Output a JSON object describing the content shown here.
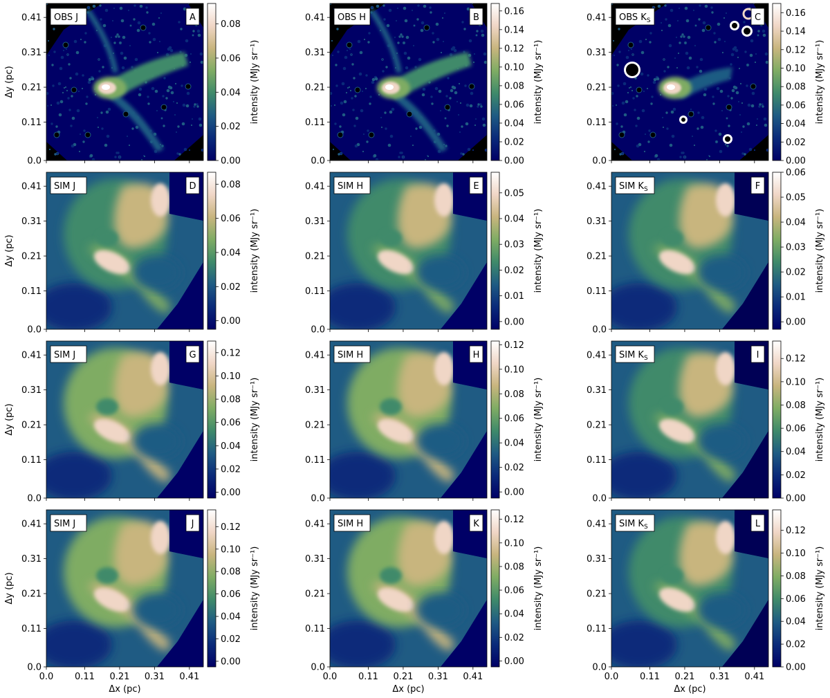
{
  "figure": {
    "colormap": [
      "#000066",
      "#0a2a7a",
      "#1f5b83",
      "#3f8a6a",
      "#7fac64",
      "#c8b57e",
      "#f0d6c6",
      "#ffffff"
    ],
    "obs_background": "#000000"
  },
  "chart_data": [
    {
      "type": "heatmap",
      "panel": "A",
      "label": "OBS J",
      "label_sub": "",
      "xlabel": "",
      "ylabel": "Δy (pc)",
      "colorbar_label": "intensity (MJy sr⁻¹)",
      "colorbar_ticks": [
        "0.00",
        "0.02",
        "0.04",
        "0.06",
        "0.08"
      ],
      "colorbar_range": [
        0,
        0.092
      ],
      "x_ticks": [
        "0.0",
        "0.11",
        "0.21",
        "0.31",
        "0.41"
      ],
      "y_ticks": [
        "0.0",
        "0.11",
        "0.21",
        "0.31",
        "0.41"
      ],
      "xlim": [
        0,
        0.45
      ],
      "ylim": [
        0,
        0.45
      ],
      "kind": "obs"
    },
    {
      "type": "heatmap",
      "panel": "B",
      "label": "OBS H",
      "label_sub": "",
      "xlabel": "",
      "ylabel": "",
      "colorbar_label": "intensity (MJy sr⁻¹)",
      "colorbar_ticks": [
        "0.00",
        "0.02",
        "0.04",
        "0.06",
        "0.08",
        "0.10",
        "0.12",
        "0.14",
        "0.16"
      ],
      "colorbar_range": [
        0,
        0.168
      ],
      "x_ticks": [
        "0.0",
        "0.11",
        "0.21",
        "0.31",
        "0.41"
      ],
      "y_ticks": [
        "0.0",
        "0.11",
        "0.21",
        "0.31",
        "0.41"
      ],
      "xlim": [
        0,
        0.45
      ],
      "ylim": [
        0,
        0.45
      ],
      "kind": "obs"
    },
    {
      "type": "heatmap",
      "panel": "C",
      "label": "OBS K",
      "label_sub": "S",
      "xlabel": "",
      "ylabel": "",
      "colorbar_label": "intensity (MJy sr⁻¹)",
      "colorbar_ticks": [
        "0.00",
        "0.02",
        "0.04",
        "0.06",
        "0.08",
        "0.10",
        "0.12",
        "0.14",
        "0.16"
      ],
      "colorbar_range": [
        0,
        0.17
      ],
      "x_ticks": [
        "0.0",
        "0.11",
        "0.21",
        "0.31",
        "0.41"
      ],
      "y_ticks": [
        "0.0",
        "0.11",
        "0.21",
        "0.31",
        "0.41"
      ],
      "xlim": [
        0,
        0.45
      ],
      "ylim": [
        0,
        0.45
      ],
      "kind": "obsK"
    },
    {
      "type": "heatmap",
      "panel": "D",
      "label": "SIM J",
      "label_sub": "",
      "xlabel": "",
      "ylabel": "Δy (pc)",
      "colorbar_label": "intensity (MJy sr⁻¹)",
      "colorbar_ticks": [
        "0.00",
        "0.02",
        "0.04",
        "0.06",
        "0.08"
      ],
      "colorbar_range": [
        -0.005,
        0.087
      ],
      "x_ticks": [
        "0.0",
        "0.11",
        "0.21",
        "0.31",
        "0.41"
      ],
      "y_ticks": [
        "0.0",
        "0.11",
        "0.21",
        "0.31",
        "0.41"
      ],
      "xlim": [
        0,
        0.45
      ],
      "ylim": [
        0,
        0.45
      ],
      "kind": "sim"
    },
    {
      "type": "heatmap",
      "panel": "E",
      "label": "SIM H",
      "label_sub": "",
      "xlabel": "",
      "ylabel": "",
      "colorbar_label": "intensity (MJy sr⁻¹)",
      "colorbar_ticks": [
        "0.00",
        "0.01",
        "0.02",
        "0.03",
        "0.04",
        "0.05"
      ],
      "colorbar_range": [
        -0.003,
        0.058
      ],
      "x_ticks": [
        "0.0",
        "0.11",
        "0.21",
        "0.31",
        "0.41"
      ],
      "y_ticks": [
        "0.0",
        "0.11",
        "0.21",
        "0.31",
        "0.41"
      ],
      "xlim": [
        0,
        0.45
      ],
      "ylim": [
        0,
        0.45
      ],
      "kind": "sim"
    },
    {
      "type": "heatmap",
      "panel": "F",
      "label": "SIM K",
      "label_sub": "S",
      "xlabel": "",
      "ylabel": "",
      "colorbar_label": "intensity (MJy sr⁻¹)",
      "colorbar_ticks": [
        "0.00",
        "0.01",
        "0.02",
        "0.03",
        "0.04",
        "0.05",
        "0.06"
      ],
      "colorbar_range": [
        -0.003,
        0.06
      ],
      "x_ticks": [
        "0.0",
        "0.11",
        "0.21",
        "0.31",
        "0.41"
      ],
      "y_ticks": [
        "0.0",
        "0.11",
        "0.21",
        "0.31",
        "0.41"
      ],
      "xlim": [
        0,
        0.45
      ],
      "ylim": [
        0,
        0.45
      ],
      "kind": "simK"
    },
    {
      "type": "heatmap",
      "panel": "G",
      "label": "SIM J",
      "label_sub": "",
      "xlabel": "",
      "ylabel": "Δy (pc)",
      "colorbar_label": "intensity (MJy sr⁻¹)",
      "colorbar_ticks": [
        "0.00",
        "0.02",
        "0.04",
        "0.06",
        "0.08",
        "0.10",
        "0.12"
      ],
      "colorbar_range": [
        -0.005,
        0.13
      ],
      "x_ticks": [
        "0.0",
        "0.11",
        "0.21",
        "0.31",
        "0.41"
      ],
      "y_ticks": [
        "0.0",
        "0.11",
        "0.21",
        "0.31",
        "0.41"
      ],
      "xlim": [
        0,
        0.45
      ],
      "ylim": [
        0,
        0.45
      ],
      "kind": "sim"
    },
    {
      "type": "heatmap",
      "panel": "H",
      "label": "SIM H",
      "label_sub": "",
      "xlabel": "",
      "ylabel": "",
      "colorbar_label": "intensity (MJy sr⁻¹)",
      "colorbar_ticks": [
        "0.00",
        "0.02",
        "0.04",
        "0.06",
        "0.08",
        "0.10",
        "0.12"
      ],
      "colorbar_range": [
        -0.005,
        0.123
      ],
      "x_ticks": [
        "0.0",
        "0.11",
        "0.21",
        "0.31",
        "0.41"
      ],
      "y_ticks": [
        "0.0",
        "0.11",
        "0.21",
        "0.31",
        "0.41"
      ],
      "xlim": [
        0,
        0.45
      ],
      "ylim": [
        0,
        0.45
      ],
      "kind": "sim"
    },
    {
      "type": "heatmap",
      "panel": "I",
      "label": "SIM K",
      "label_sub": "S",
      "xlabel": "",
      "ylabel": "",
      "colorbar_label": "intensity (MJy sr⁻¹)",
      "colorbar_ticks": [
        "0.00",
        "0.02",
        "0.04",
        "0.06",
        "0.08",
        "0.10",
        "0.12"
      ],
      "colorbar_range": [
        0,
        0.135
      ],
      "x_ticks": [
        "0.0",
        "0.11",
        "0.21",
        "0.31",
        "0.41"
      ],
      "y_ticks": [
        "0.0",
        "0.11",
        "0.21",
        "0.31",
        "0.41"
      ],
      "xlim": [
        0,
        0.45
      ],
      "ylim": [
        0,
        0.45
      ],
      "kind": "simK"
    },
    {
      "type": "heatmap",
      "panel": "J",
      "label": "SIM J",
      "label_sub": "",
      "xlabel": "Δx (pc)",
      "ylabel": "Δy (pc)",
      "colorbar_label": "intensity (MJy sr⁻¹)",
      "colorbar_ticks": [
        "0.00",
        "0.02",
        "0.04",
        "0.06",
        "0.08",
        "0.10",
        "0.12"
      ],
      "colorbar_range": [
        -0.005,
        0.135
      ],
      "x_ticks": [
        "0.0",
        "0.11",
        "0.21",
        "0.31",
        "0.41"
      ],
      "y_ticks": [
        "0.0",
        "0.11",
        "0.21",
        "0.31",
        "0.41"
      ],
      "xlim": [
        0,
        0.45
      ],
      "ylim": [
        0,
        0.45
      ],
      "kind": "sim"
    },
    {
      "type": "heatmap",
      "panel": "K",
      "label": "SIM H",
      "label_sub": "",
      "xlabel": "Δx (pc)",
      "ylabel": "",
      "colorbar_label": "intensity (MJy sr⁻¹)",
      "colorbar_ticks": [
        "0.00",
        "0.02",
        "0.04",
        "0.06",
        "0.08",
        "0.10",
        "0.12"
      ],
      "colorbar_range": [
        -0.005,
        0.128
      ],
      "x_ticks": [
        "0.0",
        "0.11",
        "0.21",
        "0.31",
        "0.41"
      ],
      "y_ticks": [
        "0.0",
        "0.11",
        "0.21",
        "0.31",
        "0.41"
      ],
      "xlim": [
        0,
        0.45
      ],
      "ylim": [
        0,
        0.45
      ],
      "kind": "sim"
    },
    {
      "type": "heatmap",
      "panel": "L",
      "label": "SIM K",
      "label_sub": "S",
      "xlabel": "Δx (pc)",
      "ylabel": "",
      "colorbar_label": "intensity (MJy sr⁻¹)",
      "colorbar_ticks": [
        "0.00",
        "0.02",
        "0.04",
        "0.06",
        "0.08",
        "0.10",
        "0.12"
      ],
      "colorbar_range": [
        0,
        0.138
      ],
      "x_ticks": [
        "0.0",
        "0.11",
        "0.21",
        "0.31",
        "0.41"
      ],
      "y_ticks": [
        "0.0",
        "0.11",
        "0.21",
        "0.31",
        "0.41"
      ],
      "xlim": [
        0,
        0.45
      ],
      "ylim": [
        0,
        0.45
      ],
      "kind": "simK"
    }
  ]
}
